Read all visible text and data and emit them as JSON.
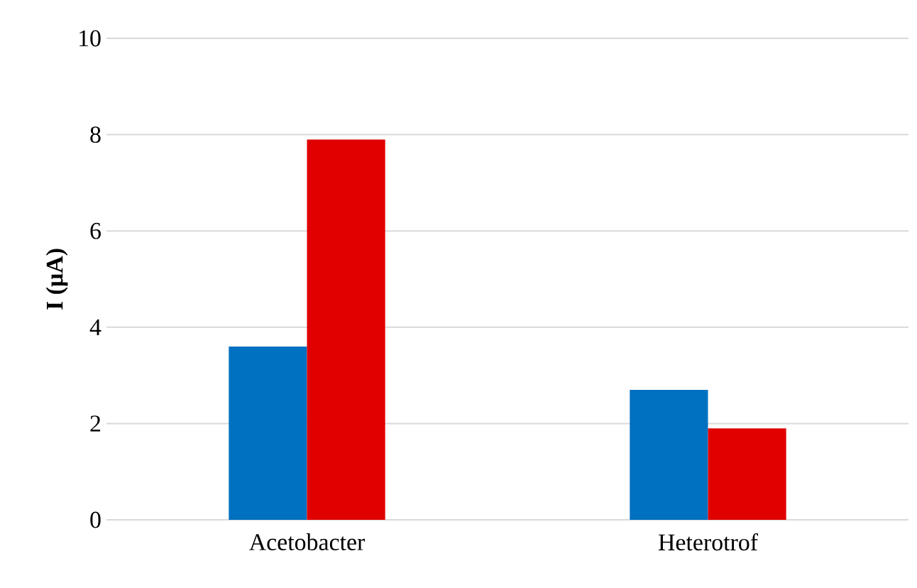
{
  "chart_data": {
    "type": "bar",
    "ylabel": "I (μA)",
    "categories": [
      "Acetobacter",
      "Heterotrof"
    ],
    "series": [
      {
        "color": "#0070c0",
        "values": [
          3.6,
          2.7
        ]
      },
      {
        "color": "#e00000",
        "values": [
          7.9,
          1.9
        ]
      }
    ],
    "ylim": [
      0,
      10
    ],
    "yticks": [
      0,
      2,
      4,
      6,
      8,
      10
    ],
    "grid": "y"
  }
}
